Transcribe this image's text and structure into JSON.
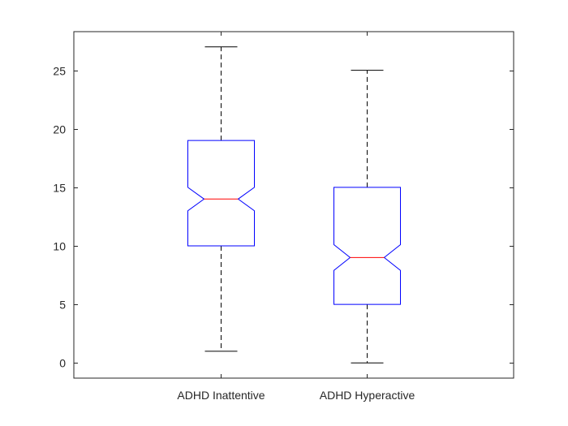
{
  "chart_data": {
    "type": "boxplot",
    "notched": true,
    "grid": false,
    "ylim": [
      -1.3,
      28.3
    ],
    "yticks": [
      0,
      5,
      10,
      15,
      20,
      25
    ],
    "categories": [
      "ADHD Inattentive",
      "ADHD Hyperactive"
    ],
    "boxes": [
      {
        "category": "ADHD Inattentive",
        "whisker_low": 1,
        "q1": 10,
        "median": 14,
        "q3": 19,
        "whisker_high": 27,
        "notch_low": 13,
        "notch_high": 15
      },
      {
        "category": "ADHD Hyperactive",
        "whisker_low": 0,
        "q1": 5,
        "median": 9,
        "q3": 15,
        "whisker_high": 25,
        "notch_low": 7.9,
        "notch_high": 10.1
      }
    ],
    "colors": {
      "box": "#0000ff",
      "median": "#ff0000",
      "whisker": "#000000",
      "axes": "#262626"
    }
  }
}
